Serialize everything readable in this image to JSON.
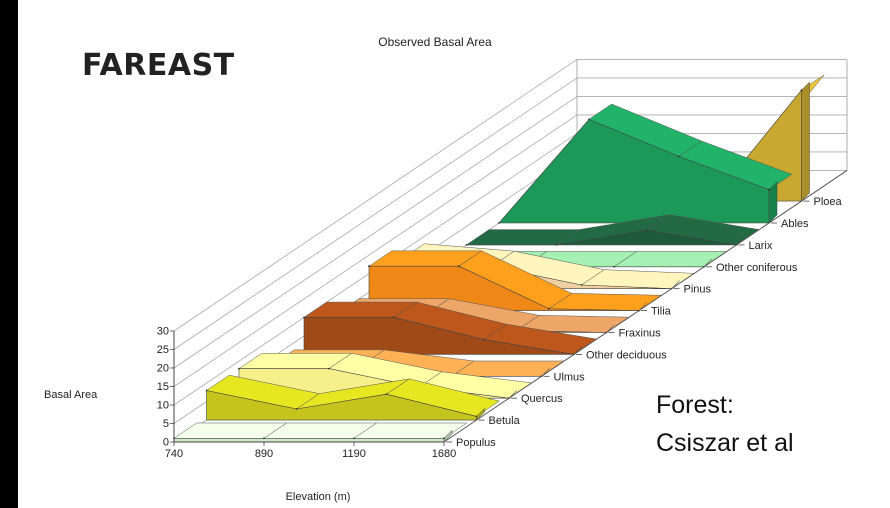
{
  "slide": {
    "title": "FAREAST",
    "caption_line1": "Forest:",
    "caption_line2": "Csiszar et al"
  },
  "chart_data": {
    "type": "area",
    "title": "Observed Basal Area",
    "xlabel": "Elevation (m)",
    "ylabel": "Basal Area",
    "x": [
      "740",
      "890",
      "1190",
      "1680"
    ],
    "ylim": [
      0,
      30
    ],
    "yticks": [
      0,
      5,
      10,
      15,
      20,
      25,
      30
    ],
    "grid": true,
    "series": [
      {
        "name": "Populus",
        "values": [
          1,
          1,
          1,
          1
        ],
        "color": "#cfe8c8"
      },
      {
        "name": "Betula",
        "values": [
          8,
          3,
          7,
          1
        ],
        "color": "#c4c41c"
      },
      {
        "name": "Quercus",
        "values": [
          8,
          8,
          3,
          0
        ],
        "color": "#f6f08c"
      },
      {
        "name": "Ulmus",
        "values": [
          3,
          3,
          0,
          0
        ],
        "color": "#d79648"
      },
      {
        "name": "Other deciduous",
        "values": [
          10,
          10,
          4,
          0
        ],
        "color": "#a04a18"
      },
      {
        "name": "Fraxinus",
        "values": [
          5,
          5,
          0.5,
          0
        ],
        "color": "#c98c58"
      },
      {
        "name": "Tilia",
        "values": [
          12,
          12,
          0.5,
          0
        ],
        "color": "#f08818"
      },
      {
        "name": "Pinus",
        "values": [
          8,
          6,
          1,
          0
        ],
        "color": "#f0d0a0"
      },
      {
        "name": "Other coniferous",
        "values": [
          0,
          0,
          0,
          0
        ],
        "color": "#8ccc98"
      },
      {
        "name": "Larix",
        "values": [
          0,
          0,
          4,
          0
        ],
        "color": "#1c5a3a"
      },
      {
        "name": "Abies",
        "values": [
          0,
          28,
          18,
          9
        ],
        "color": "#1c9858"
      },
      {
        "name": "Picea",
        "values": [
          0,
          0,
          0,
          30
        ],
        "color": "#c8a830"
      }
    ],
    "legend_labels": [
      "Populus",
      "Betula",
      "Quercus",
      "Ulmus",
      "Other deciduous",
      "Fraxinus",
      "Tilia",
      "Pinus",
      "Other coniferous",
      "Larix",
      "Ables",
      "Ploea"
    ]
  }
}
